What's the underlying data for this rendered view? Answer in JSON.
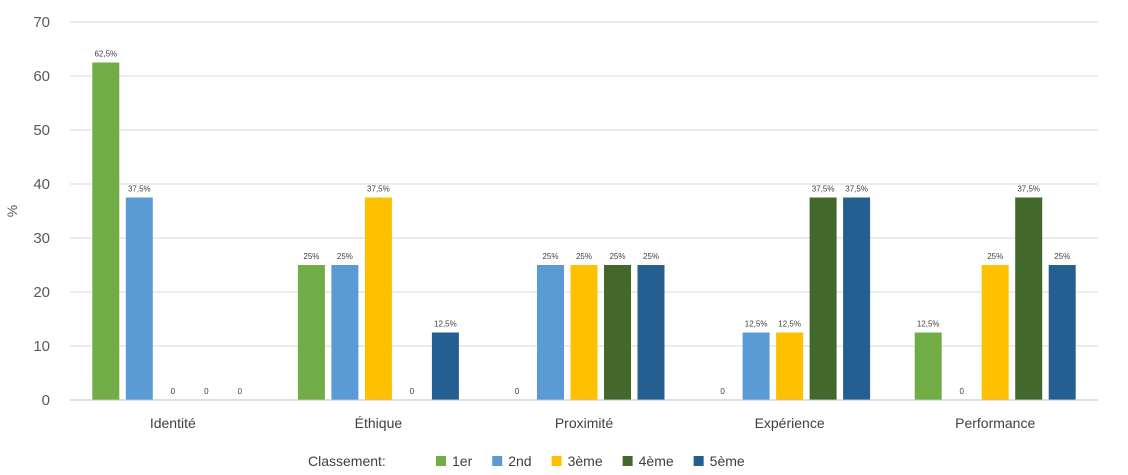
{
  "chart_data": {
    "type": "bar",
    "title": "",
    "xlabel": "",
    "ylabel": "%",
    "ylim": [
      0,
      70
    ],
    "yticks": [
      0,
      10,
      20,
      30,
      40,
      50,
      60,
      70
    ],
    "grid": true,
    "legend_position": "bottom",
    "legend_title": "Classement:",
    "categories": [
      "Identité",
      "Éthique",
      "Proximité",
      "Expérience",
      "Performance"
    ],
    "series": [
      {
        "name": "1er",
        "color": "#70AD47",
        "values": [
          62.5,
          25,
          0,
          0,
          12.5
        ],
        "labels": [
          "62,5%",
          "25%",
          "0",
          "0",
          "12,5%"
        ]
      },
      {
        "name": "2nd",
        "color": "#5B9BD5",
        "values": [
          37.5,
          25,
          25,
          12.5,
          0
        ],
        "labels": [
          "37,5%",
          "25%",
          "25%",
          "12,5%",
          "0"
        ]
      },
      {
        "name": "3ème",
        "color": "#FFC000",
        "values": [
          0,
          37.5,
          25,
          12.5,
          25
        ],
        "labels": [
          "0",
          "37,5%",
          "25%",
          "12,5%",
          "25%"
        ]
      },
      {
        "name": "4ème",
        "color": "#43682B",
        "values": [
          0,
          0,
          25,
          37.5,
          37.5
        ],
        "labels": [
          "0",
          "0",
          "25%",
          "37,5%",
          "37,5%"
        ]
      },
      {
        "name": "5ème",
        "color": "#255E91",
        "values": [
          0,
          12.5,
          25,
          37.5,
          25
        ],
        "labels": [
          "0",
          "12,5%",
          "25%",
          "37,5%",
          "25%"
        ]
      }
    ]
  }
}
